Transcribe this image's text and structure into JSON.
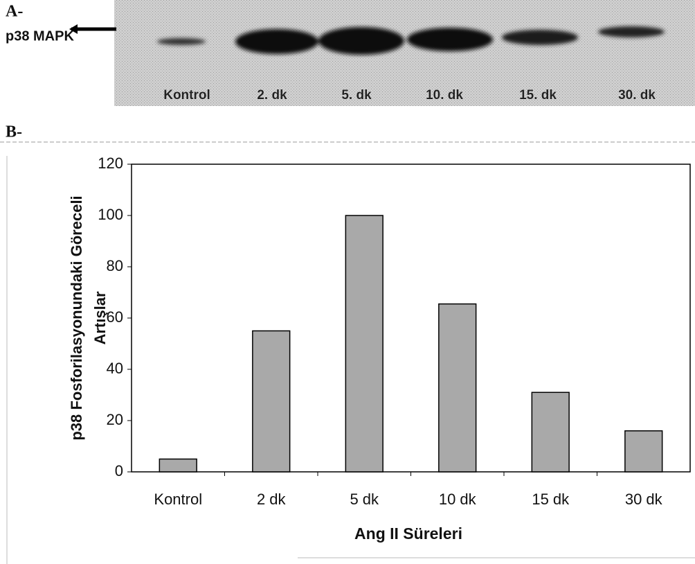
{
  "panel_a": {
    "label": "A-",
    "protein": "p38 MAPK",
    "lanes": [
      "Kontrol",
      "2. dk",
      "5. dk",
      "10. dk",
      "15. dk",
      "30. dk"
    ]
  },
  "panel_b": {
    "label": "B-"
  },
  "chart_data": {
    "type": "bar",
    "categories": [
      "Kontrol",
      "2 dk",
      "5 dk",
      "10 dk",
      "15 dk",
      "30 dk"
    ],
    "values": [
      5,
      55,
      100,
      65.5,
      31,
      16
    ],
    "color": "#a9a9a9",
    "x_label": "Ang II Süreleri",
    "y_label": [
      "p38 Fosforilasyonundaki Göreceli",
      "Artışlar"
    ],
    "ylim": [
      0,
      120
    ],
    "yticks": [
      0,
      20,
      40,
      60,
      80,
      100,
      120
    ],
    "grid": false
  }
}
